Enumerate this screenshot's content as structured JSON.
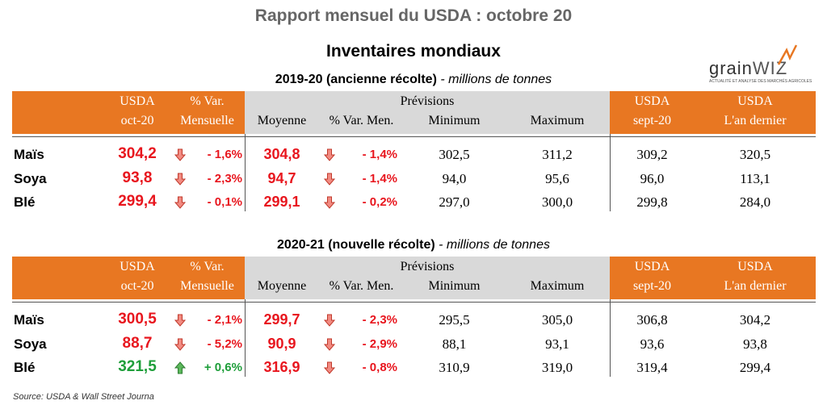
{
  "title": "Rapport mensuel du USDA : octobre 20",
  "subtitle": "Inventaires mondiaux",
  "logo": {
    "name_a": "grain",
    "name_b": "WIZ",
    "tagline": "ACTUALITÉ ET ANALYSE DES MARCHÉS AGRICOLES"
  },
  "sections": [
    {
      "heading": "2019-20 (ancienne récolte)",
      "unit": " - millions de tonnes",
      "header": {
        "usda": "USDA",
        "oct": "oct-20",
        "var1": "% Var.",
        "var2": "Mensuelle",
        "prev": "Prévisions",
        "moy": "Moyenne",
        "varmen": "% Var. Men.",
        "min": "Minimum",
        "max": "Maximum",
        "usda2": "USDA",
        "sept": "sept-20",
        "usda3": "USDA",
        "last": "L'an dernier"
      },
      "rows": [
        [
          "Maïs",
          "304,2",
          "- 1,6%",
          "304,8",
          "- 1,4%",
          "302,5",
          "311,2",
          "309,2",
          "320,5"
        ],
        [
          "Soya",
          "93,8",
          "- 2,3%",
          "94,7",
          "- 1,4%",
          "94,0",
          "95,6",
          "96,0",
          "113,1"
        ],
        [
          "Blé",
          "299,4",
          "- 0,1%",
          "299,1",
          "- 0,2%",
          "297,0",
          "300,0",
          "299,8",
          "284,0"
        ]
      ]
    },
    {
      "heading": "2020-21 (nouvelle récolte)",
      "unit": " - millions de tonnes",
      "header": {
        "usda": "USDA",
        "oct": "oct-20",
        "var1": "% Var.",
        "var2": "Mensuelle",
        "prev": "Prévisions",
        "moy": "Moyenne",
        "varmen": "% Var. Men.",
        "min": "Minimum",
        "max": "Maximum",
        "usda2": "USDA",
        "sept": "sept-20",
        "usda3": "USDA",
        "last": "L'an dernier"
      },
      "rows": [
        [
          "Maïs",
          "300,5",
          "- 2,1%",
          "299,7",
          "- 2,3%",
          "295,5",
          "305,0",
          "306,8",
          "304,2"
        ],
        [
          "Soya",
          "88,7",
          "- 5,2%",
          "90,9",
          "- 2,9%",
          "88,1",
          "93,1",
          "93,6",
          "93,8"
        ],
        [
          "Blé",
          "321,5",
          "+ 0,6%",
          "316,9",
          "- 0,8%",
          "310,9",
          "319,0",
          "319,4",
          "299,4"
        ]
      ]
    }
  ],
  "source": "Source: USDA & Wall Street Journa"
}
